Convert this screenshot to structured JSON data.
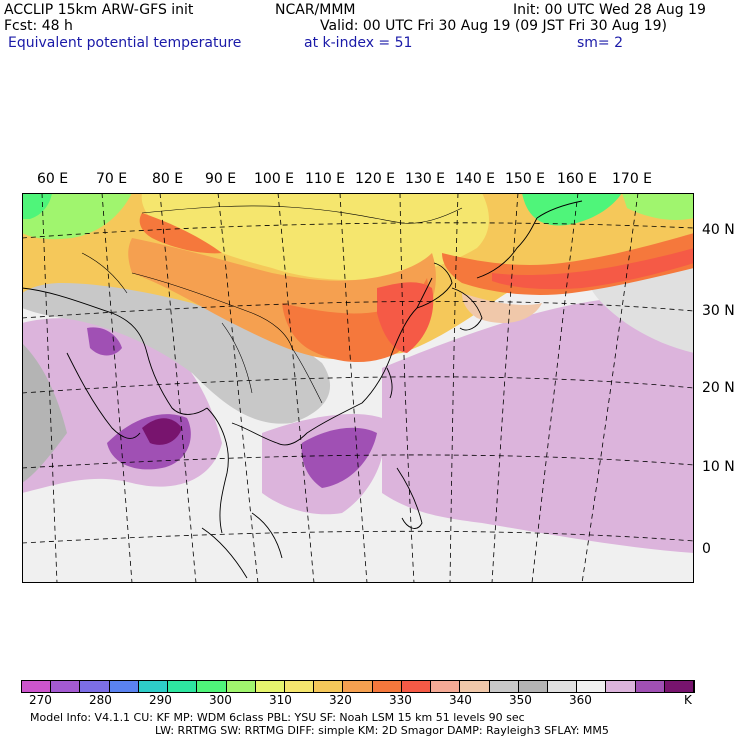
{
  "header": {
    "line1_left": "ACCLIP 15km ARW-GFS init",
    "line1_center": "NCAR/MMM",
    "line1_right": "Init: 00 UTC Wed 28 Aug 19",
    "line2_left": "Fcst:   48 h",
    "line2_right": "Valid: 00 UTC Fri 30 Aug 19 (09 JST Fri 30 Aug 19)",
    "line3_field": "Equivalent potential temperature",
    "line3_level": "at k-index =  51",
    "line3_smooth": "sm= 2"
  },
  "map": {
    "lon_labels": [
      "60 E",
      "70 E",
      "80 E",
      "90 E",
      "100 E",
      "110 E",
      "120 E",
      "130 E",
      "140 E",
      "150 E",
      "160 E",
      "170 E"
    ],
    "lat_labels": [
      "40 N",
      "30 N",
      "20 N",
      "10 N",
      "0"
    ]
  },
  "colorbar": {
    "colors": [
      "#cc55cc",
      "#a45ad2",
      "#7c6ee6",
      "#5a82f0",
      "#2ecdc8",
      "#2ee6a0",
      "#4ff57a",
      "#a0f56e",
      "#e6f56e",
      "#f5e66e",
      "#f5c85a",
      "#f5a050",
      "#f5783c",
      "#f55a46",
      "#f5aa96",
      "#f0c8aa",
      "#c8c8c8",
      "#b4b4b4",
      "#e0e0e0",
      "#f0f0f0",
      "#dcb4dc",
      "#a050b4",
      "#78146e"
    ],
    "tick_labels": [
      "270",
      "280",
      "290",
      "300",
      "310",
      "320",
      "330",
      "340",
      "350",
      "360",
      "K"
    ]
  },
  "footer": {
    "line1": "Model Info: V4.1.1     CU: KF      MP: WDM 6class   PBL: YSU       SF: Noah LSM      15 km    51 levels    90 sec",
    "line2": "LW: RRTMG    SW: RRTMG   DIFF: simple KM: 2D Smagor DAMP: Rayleigh3   SFLAY: MM5"
  }
}
